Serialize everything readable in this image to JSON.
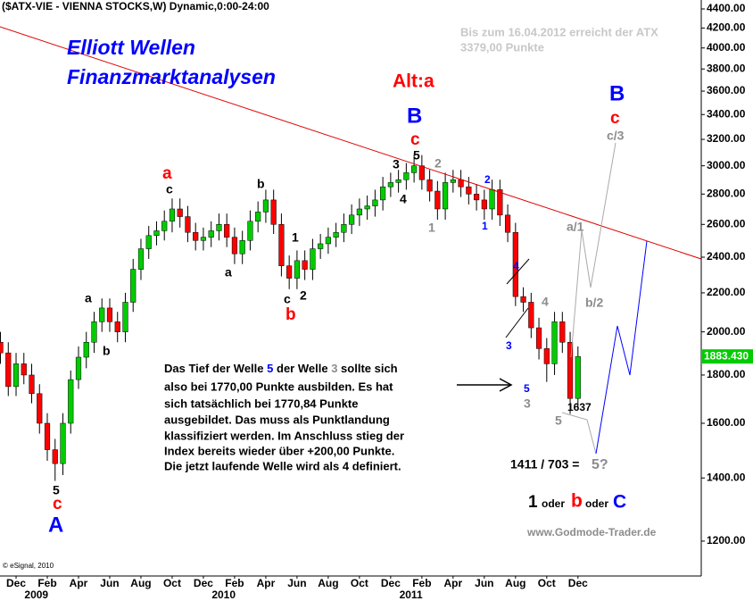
{
  "chart_data": {
    "type": "candlestick",
    "header": "($ATX-VIE - VIENNA STOCKS,W) Dynamic,0:00-24:00",
    "title": [
      "Elliott Wellen",
      "Finanzmarktanalysen"
    ],
    "note": [
      "Bis zum 16.04.2012 erreicht der ATX",
      "3379,00 Punkte"
    ],
    "log_scale": true,
    "up_color": "#00cc00",
    "down_color": "#ff0000",
    "x": [
      -1,
      -0.5,
      0,
      0.5,
      1,
      1.5,
      2,
      2.5,
      3,
      3.5,
      4,
      4.5,
      5,
      5.5,
      6,
      6.5,
      7,
      7.5,
      8,
      8.5,
      9,
      9.5,
      10,
      10.5,
      11,
      11.5,
      12,
      12.5,
      13,
      13.5,
      14,
      14.5,
      15,
      15.5,
      16,
      16.5,
      17,
      17.5,
      18,
      18.5,
      19,
      19.5,
      20,
      20.5,
      21,
      21.5,
      22,
      22.5,
      23,
      23.5,
      24,
      24.5,
      25,
      25.5,
      26,
      26.5,
      27,
      27.5,
      28,
      28.5,
      29,
      29.5,
      30,
      30.5,
      31,
      31.5,
      32,
      32.5,
      33,
      33.5,
      34,
      34.5,
      35,
      35.5,
      36
    ],
    "open": [
      1950,
      1900,
      1750,
      1850,
      1800,
      1720,
      1600,
      1500,
      1450,
      1600,
      1780,
      1880,
      1950,
      2050,
      2120,
      2050,
      2000,
      2150,
      2330,
      2450,
      2530,
      2560,
      2620,
      2700,
      2650,
      2550,
      2500,
      2520,
      2560,
      2600,
      2520,
      2420,
      2500,
      2620,
      2680,
      2760,
      2600,
      2350,
      2280,
      2380,
      2330,
      2450,
      2480,
      2520,
      2550,
      2600,
      2660,
      2700,
      2720,
      2760,
      2850,
      2880,
      2900,
      2950,
      3000,
      2900,
      2820,
      2700,
      2880,
      2900,
      2850,
      2800,
      2760,
      2700,
      2830,
      2660,
      2550,
      2180,
      2150,
      2020,
      1920,
      1850,
      2050,
      1950,
      1700
    ],
    "high": [
      2000,
      1950,
      1900,
      1900,
      1850,
      1760,
      1640,
      1540,
      1640,
      1820,
      1930,
      2000,
      2100,
      2170,
      2170,
      2100,
      2200,
      2390,
      2510,
      2590,
      2620,
      2690,
      2770,
      2770,
      2720,
      2610,
      2580,
      2620,
      2670,
      2670,
      2580,
      2560,
      2690,
      2750,
      2830,
      2830,
      2670,
      2410,
      2440,
      2440,
      2510,
      2540,
      2580,
      2610,
      2670,
      2730,
      2770,
      2790,
      2830,
      2920,
      2950,
      2970,
      3020,
      3080,
      3080,
      2970,
      2890,
      2950,
      2970,
      2970,
      2920,
      2870,
      2830,
      2900,
      2900,
      2730,
      2610,
      2230,
      2200,
      2070,
      1970,
      2100,
      2100,
      2000,
      1930
    ],
    "low": [
      1850,
      1710,
      1710,
      1760,
      1680,
      1560,
      1460,
      1390,
      1410,
      1560,
      1740,
      1830,
      1900,
      2000,
      2000,
      1950,
      1950,
      2100,
      2270,
      2390,
      2470,
      2500,
      2550,
      2580,
      2490,
      2440,
      2440,
      2460,
      2500,
      2460,
      2360,
      2360,
      2440,
      2550,
      2610,
      2540,
      2290,
      2220,
      2220,
      2270,
      2270,
      2390,
      2420,
      2460,
      2490,
      2540,
      2590,
      2630,
      2650,
      2690,
      2780,
      2810,
      2830,
      2880,
      2830,
      2750,
      2630,
      2630,
      2810,
      2780,
      2730,
      2690,
      2630,
      2630,
      2590,
      2490,
      2130,
      2100,
      1970,
      1870,
      1770,
      1800,
      1900,
      1637,
      1660
    ],
    "close": [
      1900,
      1750,
      1850,
      1800,
      1720,
      1600,
      1500,
      1450,
      1600,
      1780,
      1880,
      1950,
      2050,
      2120,
      2050,
      2000,
      2150,
      2330,
      2450,
      2530,
      2560,
      2620,
      2700,
      2650,
      2550,
      2500,
      2520,
      2560,
      2600,
      2520,
      2420,
      2500,
      2620,
      2680,
      2760,
      2600,
      2350,
      2280,
      2380,
      2330,
      2450,
      2480,
      2520,
      2550,
      2600,
      2660,
      2700,
      2720,
      2760,
      2850,
      2880,
      2900,
      2950,
      3000,
      2900,
      2820,
      2700,
      2880,
      2900,
      2850,
      2800,
      2760,
      2700,
      2830,
      2660,
      2550,
      2180,
      2150,
      2020,
      1920,
      1850,
      2050,
      1950,
      1700,
      1883.43
    ],
    "last_price_label": "1883.430",
    "xlim": [
      -1.03,
      43.9
    ],
    "ylim": [
      1102,
      4497
    ],
    "xticks": [
      {
        "value": 0,
        "label": "Dec"
      },
      {
        "value": 2,
        "label": "Feb"
      },
      {
        "value": 4,
        "label": "Apr"
      },
      {
        "value": 6,
        "label": "Jun"
      },
      {
        "value": 8,
        "label": "Aug"
      },
      {
        "value": 10,
        "label": "Oct"
      },
      {
        "value": 12,
        "label": "Dec"
      },
      {
        "value": 14,
        "label": "Feb"
      },
      {
        "value": 16,
        "label": "Apr"
      },
      {
        "value": 18,
        "label": "Jun"
      },
      {
        "value": 20,
        "label": "Aug"
      },
      {
        "value": 22,
        "label": "Oct"
      },
      {
        "value": 24,
        "label": "Dec"
      },
      {
        "value": 26,
        "label": "Feb"
      },
      {
        "value": 28,
        "label": "Apr"
      },
      {
        "value": 30,
        "label": "Jun"
      },
      {
        "value": 32,
        "label": "Aug"
      },
      {
        "value": 34,
        "label": "Oct"
      },
      {
        "value": 36,
        "label": "Dec"
      }
    ],
    "year_ticks": [
      {
        "value": 1.3,
        "label": "2009"
      },
      {
        "value": 13.3,
        "label": "2010"
      },
      {
        "value": 25.3,
        "label": "2011"
      }
    ],
    "yticks": [
      {
        "value": 1200,
        "label": "1200.00"
      },
      {
        "value": 1400,
        "label": "1400.00"
      },
      {
        "value": 1600,
        "label": "1600.00"
      },
      {
        "value": 1800,
        "label": "1800.00"
      },
      {
        "value": 2000,
        "label": "2000.00"
      },
      {
        "value": 2200,
        "label": "2200.00"
      },
      {
        "value": 2400,
        "label": "2400.00"
      },
      {
        "value": 2600,
        "label": "2600.00"
      },
      {
        "value": 2800,
        "label": "2800.00"
      },
      {
        "value": 3000,
        "label": "3000.00"
      },
      {
        "value": 3200,
        "label": "3200.00"
      },
      {
        "value": 3400,
        "label": "3400.00"
      },
      {
        "value": 3600,
        "label": "3600.00"
      },
      {
        "value": 3800,
        "label": "3800.00"
      },
      {
        "value": 4000,
        "label": "4000.00"
      },
      {
        "value": 4200,
        "label": "4200.00"
      },
      {
        "value": 4400,
        "label": "4400.00"
      }
    ],
    "annotations": [
      "Alt:a",
      "B",
      "c",
      "5",
      "3",
      "4",
      "2",
      "1",
      "2",
      "1",
      "4",
      "3",
      "4",
      "5",
      "3",
      "5",
      "1637",
      "a",
      "c",
      "b",
      "a",
      "1",
      "c",
      "2",
      "b",
      "a",
      "b",
      "5",
      "c",
      "A",
      "B",
      "c",
      "c/3",
      "a/1",
      "b/2",
      "5?",
      "1411 / 703 =",
      "1",
      "oder",
      "b",
      "oder",
      "C",
      "www.Godmode-Trader.de",
      "© eSignal, 2010"
    ],
    "text_box": [
      [
        "Das Tief der Welle",
        "5",
        "der Welle",
        "3",
        "sollte sich"
      ],
      "also bei 1770,00 Punkte ausbilden. Es hat",
      "sich tatsächlich bei 1770,84 Punkte",
      "ausgebildet. Das muss als Punktlandung",
      "klassifiziert werden. Im Anschluss stieg der",
      "Index bereits wieder über +200,00 Punkte.",
      "Die jetzt laufende Welle wird als 4 definiert."
    ]
  }
}
